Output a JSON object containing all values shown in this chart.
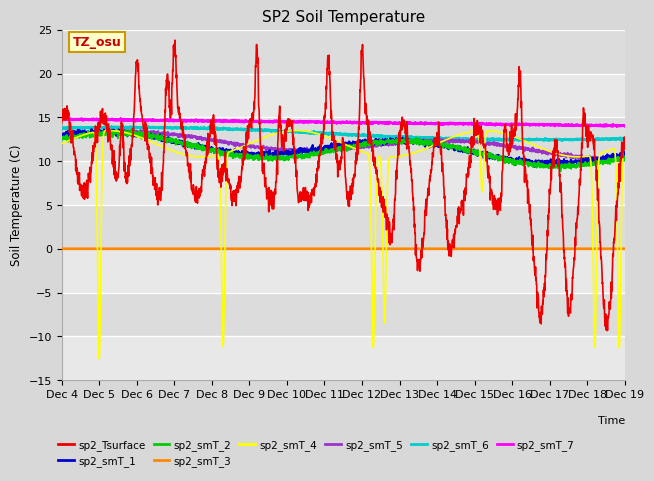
{
  "title": "SP2 Soil Temperature",
  "xlabel": "Time",
  "ylabel": "Soil Temperature (C)",
  "ylim": [
    -15,
    25
  ],
  "xlim": [
    0,
    15
  ],
  "xtick_labels": [
    "Dec 4",
    "Dec 5",
    "Dec 6",
    "Dec 7",
    "Dec 8",
    "Dec 9",
    "Dec 10",
    "Dec 11",
    "Dec 12",
    "Dec 13",
    "Dec 14",
    "Dec 15",
    "Dec 16",
    "Dec 17",
    "Dec 18",
    "Dec 19"
  ],
  "ytick_values": [
    -15,
    -10,
    -5,
    0,
    5,
    10,
    15,
    20,
    25
  ],
  "fig_bg": "#d8d8d8",
  "plot_bg": "#e8e8e8",
  "band_light": "#e8e8e8",
  "band_dark": "#d8d8d8",
  "grid_color": "#ffffff",
  "annotation_text": "TZ_osu",
  "annotation_bg": "#ffffcc",
  "annotation_border": "#cc9900",
  "series_colors": {
    "sp2_Tsurface": "#ee0000",
    "sp2_smT_1": "#0000cc",
    "sp2_smT_2": "#00cc00",
    "sp2_smT_3": "#ff8800",
    "sp2_smT_4": "#ffff00",
    "sp2_smT_5": "#9933cc",
    "sp2_smT_6": "#00cccc",
    "sp2_smT_7": "#ff00ff"
  }
}
